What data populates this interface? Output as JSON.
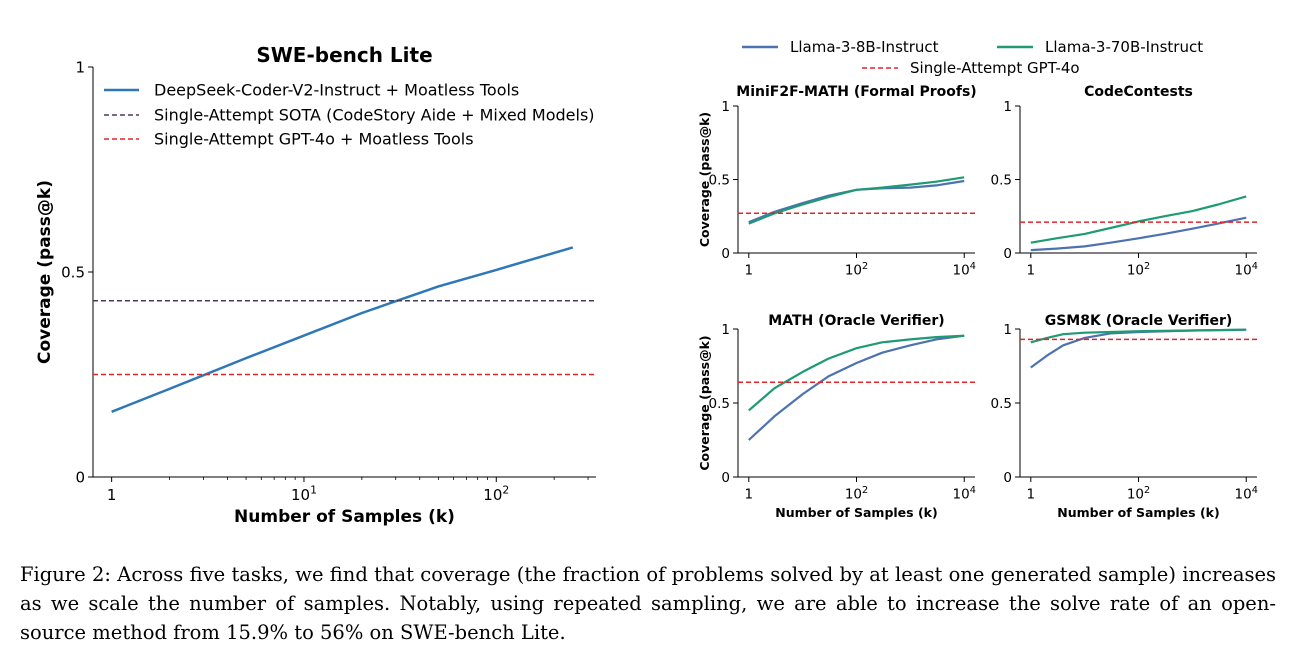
{
  "caption": "Figure 2: Across five tasks, we find that coverage (the fraction of problems solved by at least one generated sample) increases as we scale the number of samples. Notably, using repeated sampling, we are able to increase the solve rate of an open-source method from 15.9% to 56% on SWE-bench Lite.",
  "colors": {
    "deepseek": "#2e78b8",
    "sota": "#4a3a5e",
    "gpt4o": "#e0242b",
    "llama8b": "#4c72b0",
    "llama70b": "#1f9a72"
  },
  "small_legend": {
    "items": [
      "Llama-3-8B-Instruct",
      "Llama-3-70B-Instruct",
      "Single-Attempt GPT-4o"
    ]
  },
  "chart_data": [
    {
      "type": "line",
      "title": "SWE-bench Lite",
      "xlabel": "Number of Samples (k)",
      "ylabel": "Coverage (pass@k)",
      "xscale": "log",
      "xlim": [
        1,
        250
      ],
      "ylim": [
        0,
        1
      ],
      "xticks": [
        "1",
        "10^1",
        "10^2"
      ],
      "yticks": [
        "0",
        "0.5",
        "1"
      ],
      "legend": "top-left",
      "grid": false,
      "series": [
        {
          "name": "DeepSeek-Coder-V2-Instruct + Moatless Tools",
          "style": "solid",
          "color_key": "deepseek",
          "points": [
            [
              1,
              0.159
            ],
            [
              2,
              0.215
            ],
            [
              5,
              0.29
            ],
            [
              10,
              0.345
            ],
            [
              20,
              0.4
            ],
            [
              50,
              0.465
            ],
            [
              100,
              0.505
            ],
            [
              250,
              0.56
            ]
          ]
        },
        {
          "name": "Single-Attempt SOTA (CodeStory Aide + Mixed Models)",
          "style": "dashed",
          "color_key": "sota",
          "hline": 0.43
        },
        {
          "name": "Single-Attempt GPT-4o + Moatless Tools",
          "style": "dashed",
          "color_key": "gpt4o",
          "hline": 0.25
        }
      ]
    },
    {
      "type": "line",
      "title": "MiniF2F-MATH (Formal Proofs)",
      "xlabel": "",
      "ylabel": "Coverage (pass@k)",
      "xscale": "log",
      "xlim": [
        1,
        10000
      ],
      "ylim": [
        0,
        1
      ],
      "xticks": [
        "1",
        "10^2",
        "10^4"
      ],
      "yticks": [
        "0",
        "0.5",
        "1"
      ],
      "series": [
        {
          "name": "Llama-3-8B-Instruct",
          "color_key": "llama8b",
          "points": [
            [
              1,
              0.21
            ],
            [
              3,
              0.28
            ],
            [
              10,
              0.34
            ],
            [
              30,
              0.39
            ],
            [
              100,
              0.43
            ],
            [
              300,
              0.44
            ],
            [
              1000,
              0.445
            ],
            [
              3000,
              0.46
            ],
            [
              10000,
              0.49
            ]
          ]
        },
        {
          "name": "Llama-3-70B-Instruct",
          "color_key": "llama70b",
          "points": [
            [
              1,
              0.2
            ],
            [
              3,
              0.27
            ],
            [
              10,
              0.33
            ],
            [
              30,
              0.38
            ],
            [
              100,
              0.43
            ],
            [
              300,
              0.445
            ],
            [
              1000,
              0.465
            ],
            [
              3000,
              0.485
            ],
            [
              10000,
              0.515
            ]
          ]
        },
        {
          "name": "Single-Attempt GPT-4o",
          "color_key": "gpt4o",
          "style": "dashed",
          "hline": 0.27
        }
      ]
    },
    {
      "type": "line",
      "title": "CodeContests",
      "xlabel": "",
      "ylabel": "",
      "xscale": "log",
      "xlim": [
        1,
        10000
      ],
      "ylim": [
        0,
        1
      ],
      "xticks": [
        "1",
        "10^2",
        "10^4"
      ],
      "yticks": [
        "0",
        "0.5",
        "1"
      ],
      "series": [
        {
          "name": "Llama-3-8B-Instruct",
          "color_key": "llama8b",
          "points": [
            [
              1,
              0.02
            ],
            [
              3,
              0.03
            ],
            [
              10,
              0.045
            ],
            [
              30,
              0.07
            ],
            [
              100,
              0.1
            ],
            [
              300,
              0.13
            ],
            [
              1000,
              0.165
            ],
            [
              3000,
              0.2
            ],
            [
              10000,
              0.24
            ]
          ]
        },
        {
          "name": "Llama-3-70B-Instruct",
          "color_key": "llama70b",
          "points": [
            [
              1,
              0.07
            ],
            [
              3,
              0.1
            ],
            [
              10,
              0.13
            ],
            [
              30,
              0.17
            ],
            [
              100,
              0.215
            ],
            [
              300,
              0.25
            ],
            [
              1000,
              0.285
            ],
            [
              3000,
              0.33
            ],
            [
              10000,
              0.385
            ]
          ]
        },
        {
          "name": "Single-Attempt GPT-4o",
          "color_key": "gpt4o",
          "style": "dashed",
          "hline": 0.21
        }
      ]
    },
    {
      "type": "line",
      "title": "MATH (Oracle Verifier)",
      "xlabel": "Number of Samples (k)",
      "ylabel": "Coverage (pass@k)",
      "xscale": "log",
      "xlim": [
        1,
        10000
      ],
      "ylim": [
        0,
        1
      ],
      "xticks": [
        "1",
        "10^2",
        "10^4"
      ],
      "yticks": [
        "0",
        "0.5",
        "1"
      ],
      "series": [
        {
          "name": "Llama-3-8B-Instruct",
          "color_key": "llama8b",
          "points": [
            [
              1,
              0.25
            ],
            [
              3,
              0.41
            ],
            [
              10,
              0.56
            ],
            [
              30,
              0.68
            ],
            [
              100,
              0.77
            ],
            [
              300,
              0.84
            ],
            [
              1000,
              0.89
            ],
            [
              3000,
              0.93
            ],
            [
              10000,
              0.955
            ]
          ]
        },
        {
          "name": "Llama-3-70B-Instruct",
          "color_key": "llama70b",
          "points": [
            [
              1,
              0.45
            ],
            [
              3,
              0.6
            ],
            [
              10,
              0.71
            ],
            [
              30,
              0.8
            ],
            [
              100,
              0.87
            ],
            [
              300,
              0.91
            ],
            [
              1000,
              0.93
            ],
            [
              3000,
              0.945
            ],
            [
              10000,
              0.955
            ]
          ]
        },
        {
          "name": "Single-Attempt GPT-4o",
          "color_key": "gpt4o",
          "style": "dashed",
          "hline": 0.64
        }
      ]
    },
    {
      "type": "line",
      "title": "GSM8K (Oracle Verifier)",
      "xlabel": "Number of Samples (k)",
      "ylabel": "",
      "xscale": "log",
      "xlim": [
        1,
        10000
      ],
      "ylim": [
        0,
        1
      ],
      "xticks": [
        "1",
        "10^2",
        "10^4"
      ],
      "yticks": [
        "0",
        "0.5",
        "1"
      ],
      "series": [
        {
          "name": "Llama-3-8B-Instruct",
          "color_key": "llama8b",
          "points": [
            [
              1,
              0.74
            ],
            [
              2,
              0.82
            ],
            [
              4,
              0.89
            ],
            [
              10,
              0.94
            ],
            [
              30,
              0.97
            ],
            [
              100,
              0.98
            ],
            [
              1000,
              0.99
            ],
            [
              10000,
              0.995
            ]
          ]
        },
        {
          "name": "Llama-3-70B-Instruct",
          "color_key": "llama70b",
          "points": [
            [
              1,
              0.91
            ],
            [
              2,
              0.94
            ],
            [
              4,
              0.965
            ],
            [
              10,
              0.975
            ],
            [
              30,
              0.98
            ],
            [
              100,
              0.985
            ],
            [
              1000,
              0.99
            ],
            [
              10000,
              0.995
            ]
          ]
        },
        {
          "name": "Single-Attempt GPT-4o",
          "color_key": "gpt4o",
          "style": "dashed",
          "hline": 0.93
        }
      ]
    }
  ]
}
